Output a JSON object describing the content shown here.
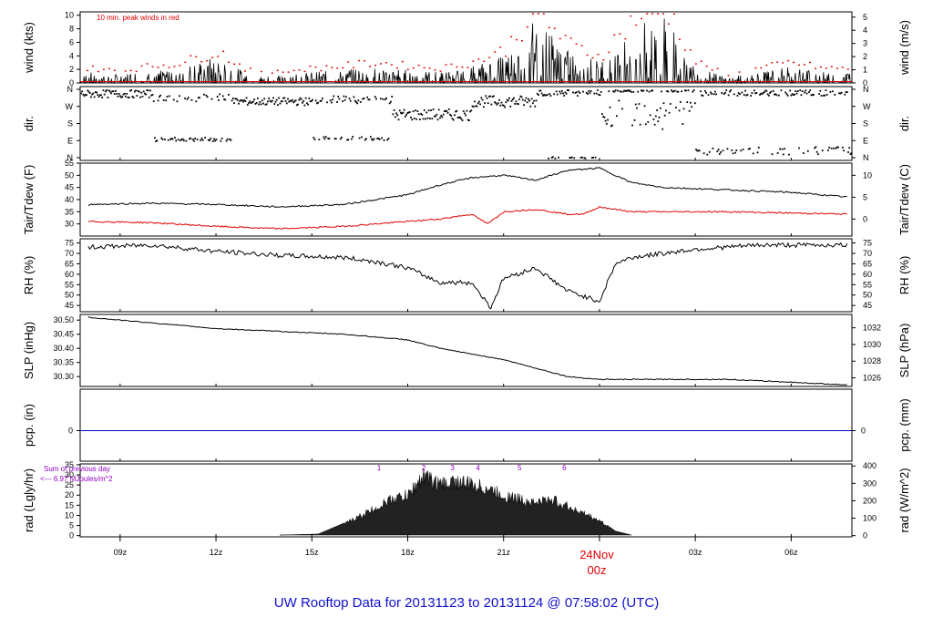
{
  "colors": {
    "primary": "#000000",
    "red": "#e00000",
    "blue": "#0000c8",
    "purple": "#9000c0",
    "title": "#1010d0"
  },
  "title": "UW Rooftop Data for 20131123  to  20131124 @ 07:58:02  (UTC)",
  "xticks": [
    "09z",
    "12z",
    "15z",
    "18z",
    "21z",
    "",
    "03z",
    "06z"
  ],
  "day_marker": {
    "line1": "24Nov",
    "line2": "00z"
  },
  "panels": {
    "wind": {
      "ylabel_left": "wind (kts)",
      "ylabel_right": "wind (m/s)",
      "note": "10 min. peak winds in red",
      "left_ticks": [
        "0",
        "2",
        "4",
        "6",
        "8",
        "10"
      ],
      "right_ticks": [
        "0",
        "1",
        "2",
        "3",
        "4",
        "5"
      ]
    },
    "dir": {
      "ylabel_left": "dir.",
      "ylabel_right": "dir.",
      "ticks": [
        "N",
        "E",
        "S",
        "W",
        "N"
      ]
    },
    "temp": {
      "ylabel_left": "Tair/Tdew (F)",
      "ylabel_right": "Tair/Tdew (C)",
      "left_ticks": [
        "30",
        "35",
        "40",
        "45",
        "50",
        "55"
      ],
      "right_ticks": [
        "0",
        "5",
        "10"
      ]
    },
    "rh": {
      "ylabel_left": "RH (%)",
      "ylabel_right": "RH (%)",
      "ticks": [
        "45",
        "50",
        "55",
        "60",
        "65",
        "70",
        "75"
      ]
    },
    "slp": {
      "ylabel_left": "SLP (inHg)",
      "ylabel_right": "SLP (hPa)",
      "left_ticks": [
        "30.30",
        "30.35",
        "30.40",
        "30.45",
        "30.50"
      ],
      "right_ticks": [
        "1026",
        "1028",
        "1030",
        "1032"
      ]
    },
    "pcp": {
      "ylabel_left": "pcp. (in)",
      "ylabel_right": "pcp. (mm)",
      "left_ticks": [
        "0"
      ],
      "right_ticks": [
        "0"
      ]
    },
    "rad": {
      "ylabel_left": "rad (Lgly/hr)",
      "ylabel_right": "rad (W/m^2)",
      "left_ticks": [
        "0",
        "5",
        "10",
        "15",
        "20",
        "25",
        "30",
        "35"
      ],
      "right_ticks": [
        "0",
        "100",
        "200",
        "300",
        "400"
      ],
      "note1": "Sum of previous day",
      "note2": "<--- 6.97 MJoules/m^2",
      "hour_marks": [
        "1",
        "2",
        "3",
        "4",
        "5",
        "6"
      ]
    }
  },
  "chart_data": [
    {
      "type": "line",
      "title": "10 min. peak winds in red",
      "ylabel": "wind (kts)",
      "ylim": [
        0,
        10.5
      ],
      "series": [
        {
          "name": "wind",
          "x": [
            8,
            9,
            10,
            11,
            12,
            13,
            14,
            15,
            16,
            17,
            18,
            19,
            20,
            21,
            22,
            23,
            24,
            25,
            26,
            27,
            28,
            29,
            30,
            31
          ],
          "values": [
            1,
            0.8,
            1.2,
            1.5,
            2.5,
            0.8,
            0.8,
            1,
            1.2,
            1.5,
            1.2,
            1,
            1.5,
            2.5,
            6,
            3,
            2,
            5,
            6.5,
            1.5,
            0.5,
            1,
            1.5,
            1
          ]
        }
      ]
    },
    {
      "type": "line",
      "ylabel": "Tair/Tdew (F)",
      "ylim": [
        25,
        55
      ],
      "series": [
        {
          "name": "Tair",
          "x": [
            8,
            10,
            12,
            14,
            16,
            18,
            19,
            20,
            21,
            22,
            23,
            24,
            25,
            26,
            28,
            30,
            31.8
          ],
          "values": [
            38,
            38.5,
            38,
            37,
            38,
            42,
            46,
            49,
            50,
            48,
            52,
            53,
            47,
            45,
            44,
            43,
            41
          ]
        },
        {
          "name": "Tdew",
          "x": [
            8,
            10,
            12,
            14,
            16,
            18,
            19,
            20,
            20.5,
            21,
            22,
            23,
            23.5,
            24,
            25,
            28,
            31.8
          ],
          "values": [
            31,
            30.5,
            29,
            28,
            29,
            31,
            32,
            34,
            30,
            35,
            36,
            34,
            34,
            37,
            35,
            35,
            34
          ]
        }
      ]
    },
    {
      "type": "line",
      "ylabel": "RH (%)",
      "ylim": [
        42,
        77
      ],
      "series": [
        {
          "name": "RH",
          "x": [
            8,
            10,
            12,
            14,
            16,
            17,
            18,
            19,
            20,
            20.6,
            21,
            22,
            23,
            24,
            24.5,
            25,
            27,
            29,
            31.8
          ],
          "values": [
            73,
            74,
            71,
            69,
            68,
            66,
            63,
            56,
            56,
            44,
            58,
            63,
            52,
            47,
            65,
            68,
            72,
            74,
            74
          ]
        }
      ]
    },
    {
      "type": "line",
      "ylabel": "SLP (inHg)",
      "ylim": [
        30.265,
        30.52
      ],
      "series": [
        {
          "name": "SLP",
          "x": [
            8,
            10,
            12,
            14,
            16,
            18,
            19,
            20,
            21,
            22,
            23,
            24,
            26,
            28,
            30,
            31.8
          ],
          "values": [
            30.51,
            30.49,
            30.47,
            30.46,
            30.45,
            30.43,
            30.4,
            30.38,
            30.36,
            30.33,
            30.3,
            30.29,
            30.29,
            30.29,
            30.28,
            30.27
          ]
        }
      ]
    },
    {
      "type": "line",
      "ylabel": "pcp. (in)",
      "ylim": [
        -1,
        1
      ],
      "series": [
        {
          "name": "pcp",
          "x": [
            8,
            31.8
          ],
          "values": [
            0,
            0
          ]
        }
      ]
    },
    {
      "type": "area",
      "ylabel": "rad (Lgly/hr)",
      "ylim": [
        0,
        35
      ],
      "series": [
        {
          "name": "rad",
          "x": [
            14,
            15.2,
            16,
            17,
            17.5,
            18,
            18.5,
            19,
            19.5,
            20,
            20.5,
            21,
            22,
            22.5,
            23,
            23.5,
            24,
            24.5,
            25
          ],
          "values": [
            0,
            0.5,
            6,
            15,
            20,
            22,
            33,
            28,
            30,
            28,
            26,
            22,
            18,
            20,
            16,
            12,
            8,
            2,
            0
          ]
        }
      ]
    }
  ]
}
